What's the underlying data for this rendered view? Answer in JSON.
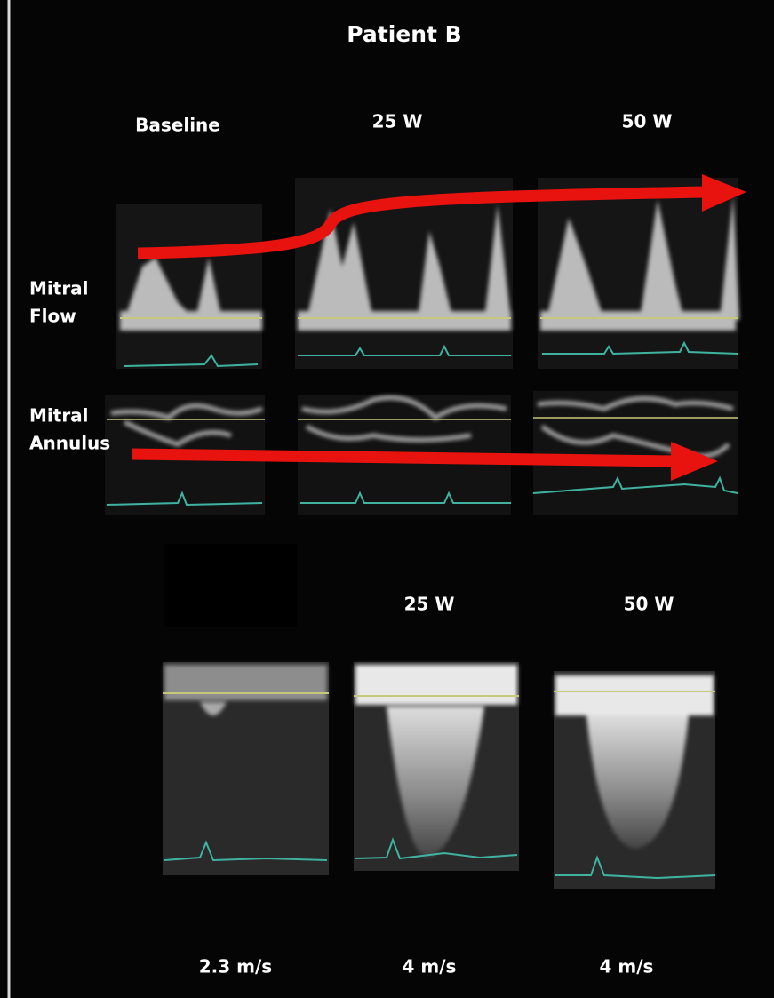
{
  "title": "Patient B",
  "top_columns": [
    "Baseline",
    "25 W",
    "50 W"
  ],
  "rows": [
    {
      "label_lines": [
        "Mitral",
        "Flow"
      ]
    },
    {
      "label_lines": [
        "Mitral",
        "Annulus"
      ]
    }
  ],
  "bottom_columns": [
    "25 W",
    "50 W"
  ],
  "velocities": [
    "2.3 m/s",
    "4 m/s",
    "4 m/s"
  ]
}
